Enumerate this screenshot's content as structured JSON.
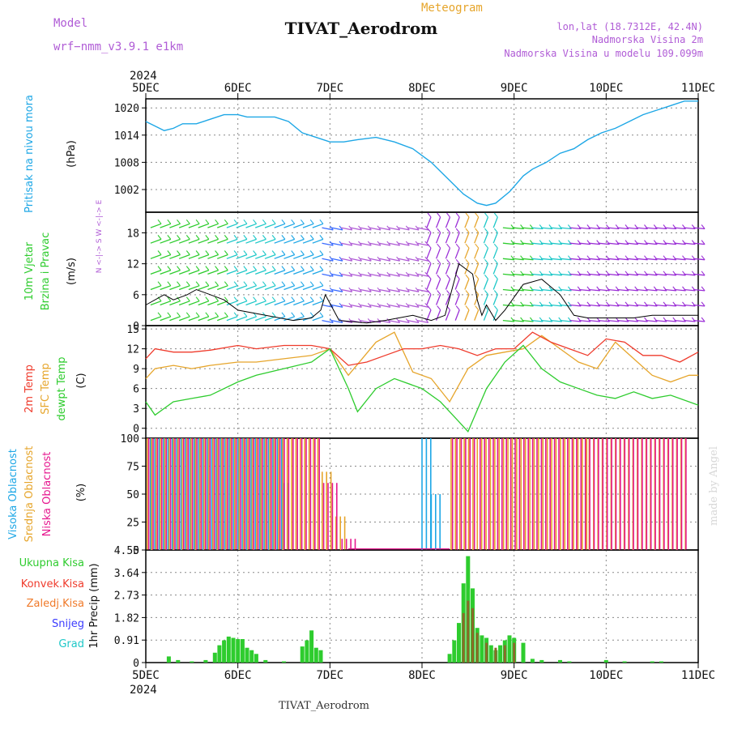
{
  "header": {
    "model_label": "Model",
    "model_name": "wrf−nmm_v3.9.1 e1km",
    "product": "Meteogram",
    "station": "TIVAT_Aerodrom",
    "lonlat": "lon,lat (18.7312E, 42.4N)",
    "elevation": "Nadmorska Visina 2m",
    "model_elevation": "Nadmorska Visina u modelu 109.099m",
    "credit": "made by Angel",
    "footer_station": "TIVAT_Aerodrom"
  },
  "time_axis": {
    "year": "2024",
    "ticks": [
      "5DEC",
      "6DEC",
      "7DEC",
      "8DEC",
      "9DEC",
      "10DEC",
      "11DEC"
    ]
  },
  "colors": {
    "pressure": "#1ea7e6",
    "temp2m": "#ef3b2c",
    "sfc": "#e6a52b",
    "dewpt": "#2ecc2e",
    "cloud_high": "#1ea7e6",
    "cloud_mid": "#e6a52b",
    "cloud_low": "#e6188f",
    "precip_total": "#2ecc2e",
    "precip_conv": "#ef3b2c",
    "precip_strat": "#f07a2a",
    "snow": "#3b3bff",
    "graupel": "#1ec8c8",
    "purple_text": "#b05cd6"
  },
  "panels": {
    "pressure": {
      "label": "Pritisak na nivou mora",
      "unit": "(hPa)"
    },
    "wind": {
      "label1": "10m Vjetar",
      "label2": "Brzina i Pravac",
      "unit": "(m/s)",
      "compass": "N <-|-> S   W <-|-> E"
    },
    "temp": {
      "label1": "2m Temp",
      "label2": "SFC Temp",
      "label3": "dewpt Temp",
      "unit": "(C)"
    },
    "cloud": {
      "label1": "Visoka Oblacnost",
      "label2": "Srednja Oblacnost",
      "label3": "Niska Oblacnost",
      "unit": "(%)"
    },
    "precip": {
      "unit": "1hr Precip (mm)",
      "legend": [
        "Ukupna Kisa",
        "Konvek.Kisa",
        "Zaledj.Kisa",
        "Snijeg",
        "Grad"
      ]
    }
  },
  "chart_data": [
    {
      "type": "line",
      "title": "",
      "ylabel": "(hPa)",
      "ylim": [
        997,
        1022
      ],
      "yticks": [
        1002,
        1008,
        1014,
        1020
      ],
      "x_unit": "days since 5DEC 00",
      "series": [
        {
          "name": "Pritisak na nivou mora",
          "x": [
            0,
            0.1,
            0.2,
            0.3,
            0.4,
            0.55,
            0.7,
            0.85,
            1.0,
            1.1,
            1.25,
            1.4,
            1.55,
            1.7,
            1.85,
            2.0,
            2.15,
            2.3,
            2.5,
            2.7,
            2.9,
            3.1,
            3.3,
            3.45,
            3.6,
            3.7,
            3.8,
            3.95,
            4.1,
            4.2,
            4.35,
            4.5,
            4.65,
            4.8,
            4.95,
            5.1,
            5.25,
            5.4,
            5.55,
            5.7,
            5.85,
            6.0
          ],
          "y": [
            1017,
            1016,
            1015,
            1015.5,
            1016.5,
            1016.5,
            1017.5,
            1018.5,
            1018.5,
            1018,
            1018,
            1018,
            1017,
            1014.5,
            1013.5,
            1012.5,
            1012.5,
            1013,
            1013.5,
            1012.5,
            1011,
            1008,
            1004,
            1001,
            999,
            998.5,
            999,
            1001.5,
            1005,
            1006.5,
            1008,
            1010,
            1011,
            1013,
            1014.5,
            1015.5,
            1017,
            1018.5,
            1019.5,
            1020.5,
            1021.5,
            1021.5
          ]
        }
      ]
    },
    {
      "type": "line",
      "title": "",
      "ylabel": "(m/s)",
      "ylim": [
        0,
        22
      ],
      "yticks": [
        0,
        6,
        12,
        18
      ],
      "series": [
        {
          "name": "wind speed",
          "x": [
            0,
            0.2,
            0.3,
            0.45,
            0.55,
            0.7,
            0.85,
            1.0,
            1.3,
            1.6,
            1.8,
            1.9,
            1.95,
            2.1,
            2.4,
            2.6,
            2.9,
            3.1,
            3.25,
            3.4,
            3.55,
            3.6,
            3.65,
            3.7,
            3.8,
            3.9,
            4.1,
            4.3,
            4.5,
            4.65,
            4.8,
            5.0,
            5.3,
            5.5,
            5.8,
            6.0
          ],
          "y": [
            4,
            6,
            5,
            6,
            7,
            6,
            5,
            3,
            2,
            1,
            1.5,
            3,
            6,
            1,
            0.5,
            1,
            2,
            1,
            2,
            12,
            10,
            5,
            2,
            4,
            1,
            3,
            8,
            9,
            6,
            2,
            1.5,
            1.5,
            1.5,
            2,
            2,
            2
          ]
        }
      ]
    },
    {
      "type": "line",
      "title": "",
      "ylabel": "(C)",
      "ylim": [
        -1.5,
        15.5
      ],
      "yticks": [
        0,
        3,
        6,
        9,
        12,
        15
      ],
      "series": [
        {
          "name": "2m Temp",
          "x": [
            0,
            0.1,
            0.3,
            0.5,
            0.7,
            1.0,
            1.2,
            1.5,
            1.8,
            2.0,
            2.2,
            2.4,
            2.6,
            2.8,
            3.0,
            3.2,
            3.4,
            3.6,
            3.8,
            4.0,
            4.2,
            4.4,
            4.6,
            4.8,
            5.0,
            5.2,
            5.4,
            5.6,
            5.8,
            6.0
          ],
          "y": [
            10.5,
            12,
            11.5,
            11.5,
            11.8,
            12.5,
            12,
            12.5,
            12.5,
            12,
            9.5,
            10,
            11,
            12,
            12,
            12.5,
            12,
            11,
            12,
            12,
            14.5,
            13,
            12,
            11,
            13.5,
            13,
            11,
            11,
            10,
            11.5
          ]
        },
        {
          "name": "SFC Temp",
          "x": [
            0,
            0.1,
            0.3,
            0.5,
            0.7,
            1.0,
            1.2,
            1.5,
            1.8,
            2.0,
            2.2,
            2.5,
            2.7,
            2.9,
            3.1,
            3.3,
            3.5,
            3.7,
            3.9,
            4.1,
            4.3,
            4.5,
            4.7,
            4.9,
            5.1,
            5.3,
            5.5,
            5.7,
            5.9,
            6.0
          ],
          "y": [
            7.5,
            9,
            9.5,
            9,
            9.5,
            10,
            10,
            10.5,
            11,
            12,
            8,
            13,
            14.5,
            8.5,
            7.5,
            4,
            9,
            11,
            11.5,
            12,
            14,
            12,
            10,
            9,
            13,
            10.5,
            8,
            7,
            8,
            8
          ]
        },
        {
          "name": "dewpt Temp",
          "x": [
            0,
            0.1,
            0.3,
            0.5,
            0.7,
            1.0,
            1.2,
            1.5,
            1.8,
            2.0,
            2.2,
            2.3,
            2.5,
            2.7,
            3.0,
            3.2,
            3.4,
            3.5,
            3.7,
            3.9,
            4.1,
            4.3,
            4.5,
            4.7,
            4.9,
            5.1,
            5.3,
            5.5,
            5.7,
            6.0
          ],
          "y": [
            4,
            2,
            4,
            4.5,
            5,
            7,
            8,
            9,
            10,
            12,
            6,
            2.5,
            6,
            7.5,
            6,
            4,
            1,
            -0.5,
            6,
            10,
            12.5,
            9,
            7,
            6,
            5,
            4.5,
            5.5,
            4.5,
            5,
            3.5
          ]
        }
      ]
    },
    {
      "type": "bar",
      "title": "",
      "ylabel": "(%)",
      "ylim": [
        0,
        100
      ],
      "yticks": [
        0,
        25,
        50,
        75,
        100
      ],
      "series": [
        {
          "name": "Visoka Oblacnost",
          "segments": [
            [
              0.05,
              1.0,
              100
            ],
            [
              1.0,
              1.5,
              100
            ],
            [
              1.5,
              1.55,
              60
            ],
            [
              3.0,
              3.1,
              100
            ],
            [
              3.1,
              3.2,
              50
            ]
          ]
        },
        {
          "name": "Srednja Oblacnost",
          "segments": [
            [
              0.0,
              1.9,
              100
            ],
            [
              1.9,
              2.05,
              70
            ],
            [
              2.05,
              2.2,
              30
            ],
            [
              3.3,
              4.8,
              100
            ],
            [
              4.8,
              5.9,
              100
            ]
          ]
        },
        {
          "name": "Niska Oblacnost",
          "segments": [
            [
              0.0,
              1.9,
              100
            ],
            [
              1.9,
              2.1,
              60
            ],
            [
              2.1,
              2.3,
              10
            ],
            [
              3.3,
              3.6,
              100
            ],
            [
              3.6,
              4.6,
              100
            ],
            [
              4.6,
              5.9,
              100
            ]
          ]
        }
      ]
    },
    {
      "type": "bar",
      "title": "",
      "ylabel": "1hr Precip (mm)",
      "ylim": [
        0,
        4.55
      ],
      "yticks": [
        0,
        0.91,
        1.82,
        2.73,
        3.64,
        4.55
      ],
      "series": [
        {
          "name": "Ukupna Kisa",
          "x": [
            0.25,
            0.35,
            0.5,
            0.65,
            0.75,
            0.8,
            0.85,
            0.9,
            0.95,
            1.0,
            1.05,
            1.1,
            1.15,
            1.2,
            1.3,
            1.5,
            1.7,
            1.75,
            1.8,
            1.85,
            1.9,
            3.3,
            3.35,
            3.4,
            3.45,
            3.5,
            3.55,
            3.6,
            3.65,
            3.7,
            3.75,
            3.8,
            3.85,
            3.9,
            3.95,
            4.0,
            4.1,
            4.2,
            4.3,
            4.5,
            4.6,
            5.0,
            5.2,
            5.5,
            5.6
          ],
          "y": [
            0.25,
            0.1,
            0.05,
            0.1,
            0.4,
            0.7,
            0.9,
            1.05,
            1.0,
            0.95,
            0.95,
            0.6,
            0.5,
            0.35,
            0.1,
            0.05,
            0.65,
            0.9,
            1.3,
            0.6,
            0.5,
            0.35,
            0.9,
            1.6,
            3.2,
            4.3,
            3.0,
            1.4,
            1.1,
            1.0,
            0.7,
            0.5,
            0.7,
            0.9,
            1.1,
            1.0,
            0.8,
            0.15,
            0.1,
            0.1,
            0.05,
            0.1,
            0.05,
            0.05,
            0.05
          ]
        },
        {
          "name": "Konvek.Kisa",
          "x": [
            3.45,
            3.5,
            3.55,
            3.6,
            3.7,
            3.8,
            3.9,
            4.0
          ],
          "y": [
            2.0,
            2.5,
            2.2,
            1.2,
            0.8,
            0.6,
            0.7,
            0.8
          ]
        }
      ]
    }
  ]
}
